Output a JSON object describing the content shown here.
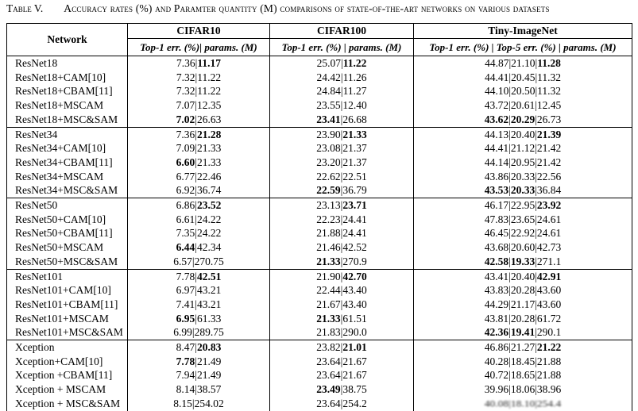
{
  "page_title": {
    "label": "Table V.",
    "caption": "Accuracy rates (%) and Paramter quantity (M) comparisons of state-of-the-art networks on various datasets"
  },
  "table": {
    "header": {
      "network": "Network",
      "groups": [
        {
          "label": "CIFAR10",
          "sub": "Top-1 err. (%)| params. (M)"
        },
        {
          "label": "CIFAR100",
          "sub": "Top-1 err. (%) | params. (M)"
        },
        {
          "label": "Tiny-ImageNet",
          "sub": "Top-1 err. (%) | Top-5 err. (%) | params. (M)"
        }
      ]
    },
    "blocks": [
      {
        "rows": [
          {
            "network": "ResNet18",
            "c10": "7.36|*11.17*",
            "c100": "25.07|*11.22*",
            "tiny": "44.87|21.10|*11.28*"
          },
          {
            "network": "ResNet18+CAM[10]",
            "c10": "7.32|11.22",
            "c100": "24.42|11.26",
            "tiny": "44.41|20.45|11.32"
          },
          {
            "network": "ResNet18+CBAM[11]",
            "c10": "7.32|11.22",
            "c100": "24.84|11.27",
            "tiny": "44.10|20.50|11.32"
          },
          {
            "network": "ResNet18+MSCAM",
            "c10": "7.07|12.35",
            "c100": "23.55|12.40",
            "tiny": "43.72|20.61|12.45"
          },
          {
            "network": "ResNet18+MSC&SAM",
            "c10": "*7.02*|26.63",
            "c100": "*23.41*|26.68",
            "tiny": "*43.62*|*20.29*|26.73"
          }
        ]
      },
      {
        "rows": [
          {
            "network": "ResNet34",
            "c10": "7.36|*21.28*",
            "c100": "23.90|*21.33*",
            "tiny": "44.13|20.40|*21.39*"
          },
          {
            "network": "ResNet34+CAM[10]",
            "c10": "7.09|21.33",
            "c100": "23.08|21.37",
            "tiny": "44.41|21.12|21.42"
          },
          {
            "network": "ResNet34+CBAM[11]",
            "c10": "*6.60*|21.33",
            "c100": "23.20|21.37",
            "tiny": "44.14|20.95|21.42"
          },
          {
            "network": "ResNet34+MSCAM",
            "c10": "6.77|22.46",
            "c100": "22.62|22.51",
            "tiny": "43.86|20.33|22.56"
          },
          {
            "network": "ResNet34+MSC&SAM",
            "c10": "6.92|36.74",
            "c100": "*22.59*|36.79",
            "tiny": "*43.53*|*20.33*|36.84"
          }
        ]
      },
      {
        "rows": [
          {
            "network": "ResNet50",
            "c10": "6.86|*23.52*",
            "c100": "23.13|*23.71*",
            "tiny": "46.17|22.95|*23.92*"
          },
          {
            "network": "ResNet50+CAM[10]",
            "c10": "6.61|24.22",
            "c100": "22.23|24.41",
            "tiny": "47.83|23.65|24.61"
          },
          {
            "network": "ResNet50+CBAM[11]",
            "c10": "7.35|24.22",
            "c100": "21.88|24.41",
            "tiny": "46.45|22.92|24.61"
          },
          {
            "network": "ResNet50+MSCAM",
            "c10": "*6.44*|42.34",
            "c100": "21.46|42.52",
            "tiny": "43.68|20.60|42.73"
          },
          {
            "network": "ResNet50+MSC&SAM",
            "c10": "6.57|270.75",
            "c100": "*21.33*|270.9",
            "tiny": "*42.58*|*19.33*|271.1"
          }
        ]
      },
      {
        "rows": [
          {
            "network": "ResNet101",
            "c10": "7.78|*42.51*",
            "c100": "21.90|*42.70*",
            "tiny": "43.41|20.40|*42.91*"
          },
          {
            "network": "ResNet101+CAM[10]",
            "c10": "6.97|43.21",
            "c100": "22.44|43.40",
            "tiny": "43.83|20.28|43.60"
          },
          {
            "network": "ResNet101+CBAM[11]",
            "c10": "7.41|43.21",
            "c100": "21.67|43.40",
            "tiny": "44.29|21.17|43.60"
          },
          {
            "network": "ResNet101+MSCAM",
            "c10": "*6.95*|61.33",
            "c100": "*21.33*|61.51",
            "tiny": "43.81|20.28|61.72"
          },
          {
            "network": "ResNet101+MSC&SAM",
            "c10": "6.99|289.75",
            "c100": "21.83|290.0",
            "tiny": "*42.36*|*19.41*|290.1"
          }
        ]
      },
      {
        "rows": [
          {
            "network": "Xception",
            "c10": "8.47|*20.83*",
            "c100": "23.82|*21.01*",
            "tiny": "46.86|21.27|*21.22*"
          },
          {
            "network": "Xception+CAM[10]",
            "c10": "*7.78*|21.49",
            "c100": "23.64|21.67",
            "tiny": "40.28|18.45|21.88"
          },
          {
            "network": "Xception +CBAM[11]",
            "c10": "7.94|21.49",
            "c100": "23.64|21.67",
            "tiny": "40.72|18.65|21.88"
          },
          {
            "network": "Xception + MSCAM",
            "c10": "8.14|38.57",
            "c100": "*23.49*|38.75",
            "tiny": "39.96|18.06|38.96"
          },
          {
            "network": "Xception + MSC&SAM",
            "c10": "8.15|254.02",
            "c100": "23.64|254.2",
            "tiny": {
              "text": "40.08|18.10|254.4",
              "degraded": true
            }
          }
        ]
      }
    ]
  }
}
